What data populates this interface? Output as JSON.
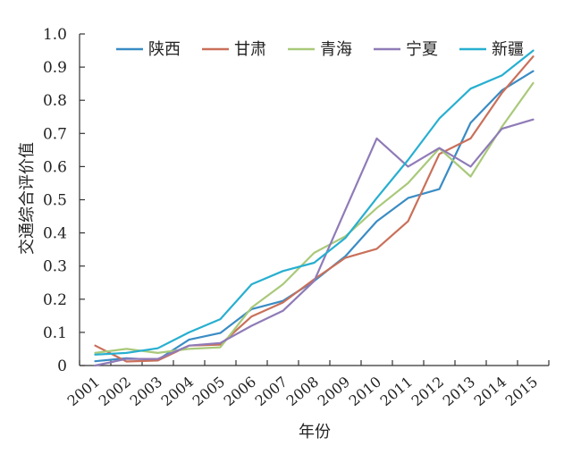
{
  "chart_data": {
    "type": "line",
    "title": "",
    "xlabel": "年份",
    "ylabel": "交通综合评价值",
    "ylim": [
      0,
      1.0
    ],
    "yticks": [
      "0",
      "0.1",
      "0.2",
      "0.3",
      "0.4",
      "0.5",
      "0.6",
      "0.7",
      "0.8",
      "0.9",
      "1.0"
    ],
    "categories": [
      "2001",
      "2002",
      "2003",
      "2004",
      "2005",
      "2006",
      "2007",
      "2008",
      "2009",
      "2010",
      "2011",
      "2012",
      "2013",
      "2014",
      "2015"
    ],
    "grid": false,
    "legend_position": "top",
    "series": [
      {
        "name": "陕西",
        "color": "#3a8cc4",
        "values": [
          0.013,
          0.022,
          0.017,
          0.078,
          0.098,
          0.17,
          0.195,
          0.255,
          0.33,
          0.435,
          0.505,
          0.532,
          0.732,
          0.83,
          0.888
        ]
      },
      {
        "name": "甘肃",
        "color": "#c9705a",
        "values": [
          0.06,
          0.012,
          0.015,
          0.06,
          0.063,
          0.148,
          0.19,
          0.26,
          0.325,
          0.352,
          0.435,
          0.638,
          0.685,
          0.822,
          0.932
        ]
      },
      {
        "name": "青海",
        "color": "#a9c97a",
        "values": [
          0.038,
          0.05,
          0.038,
          0.05,
          0.055,
          0.175,
          0.245,
          0.34,
          0.39,
          0.475,
          0.55,
          0.655,
          0.57,
          0.72,
          0.852
        ]
      },
      {
        "name": "宁夏",
        "color": "#8f7bb7",
        "values": [
          0.0,
          0.02,
          0.02,
          0.06,
          0.068,
          0.12,
          0.165,
          0.255,
          0.47,
          0.685,
          0.6,
          0.656,
          0.6,
          0.714,
          0.742
        ]
      },
      {
        "name": "新疆",
        "color": "#27afd0",
        "values": [
          0.033,
          0.038,
          0.052,
          0.1,
          0.14,
          0.245,
          0.285,
          0.31,
          0.385,
          0.505,
          0.62,
          0.745,
          0.835,
          0.875,
          0.95
        ]
      }
    ]
  }
}
